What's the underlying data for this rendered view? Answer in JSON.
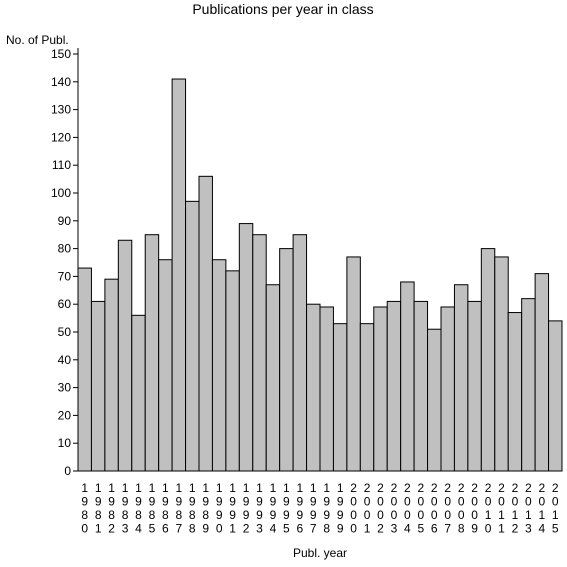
{
  "chart_data": {
    "type": "bar",
    "title": "Publications per year in class",
    "ylabel": "No. of Publ.",
    "xlabel": "Publ. year",
    "ylim": [
      0,
      150
    ],
    "yticks": [
      0,
      10,
      20,
      30,
      40,
      50,
      60,
      70,
      80,
      90,
      100,
      110,
      120,
      130,
      140,
      150
    ],
    "categories": [
      "1980",
      "1981",
      "1982",
      "1983",
      "1984",
      "1985",
      "1986",
      "1987",
      "1988",
      "1989",
      "1990",
      "1991",
      "1992",
      "1993",
      "1994",
      "1995",
      "1996",
      "1997",
      "1998",
      "1999",
      "2000",
      "2001",
      "2002",
      "2003",
      "2004",
      "2005",
      "2006",
      "2007",
      "2008",
      "2009",
      "2010",
      "2011",
      "2012",
      "2013",
      "2014",
      "2015"
    ],
    "values": [
      73,
      61,
      69,
      83,
      56,
      85,
      76,
      141,
      97,
      106,
      76,
      72,
      89,
      85,
      67,
      80,
      85,
      60,
      59,
      53,
      77,
      53,
      59,
      61,
      68,
      61,
      51,
      59,
      67,
      61,
      80,
      77,
      57,
      62,
      71,
      54
    ],
    "bar_color": "#c0c0c0",
    "grid": false,
    "legend": "none"
  }
}
